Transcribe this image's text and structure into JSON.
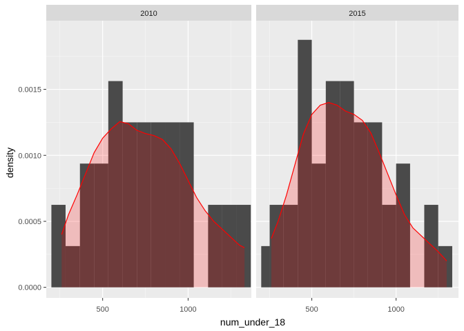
{
  "chart_data": {
    "type": "histogram-density",
    "xlabel": "num_under_18",
    "ylabel": "density",
    "xlim": [
      170,
      1370
    ],
    "ylim": [
      -8e-05,
      0.00202
    ],
    "x_ticks": [
      500,
      1000
    ],
    "y_ticks": [
      0.0,
      0.0005,
      0.001,
      0.0015
    ],
    "y_tick_labels": [
      "0.0000",
      "0.0005",
      "0.0010",
      "0.0015"
    ],
    "bin_width": 83.3,
    "colors": {
      "histogram": "#4a4a4a",
      "density_line": "#ff0000",
      "density_fill": "#ff0000",
      "panel_background": "#ebebeb",
      "strip_background": "#d9d9d9"
    },
    "panels": [
      {
        "label": "2010",
        "histogram": [
          {
            "x0": 200,
            "x1": 283,
            "y": 0.000625
          },
          {
            "x0": 283,
            "x1": 367,
            "y": 0.0003125
          },
          {
            "x0": 367,
            "x1": 450,
            "y": 0.0009375
          },
          {
            "x0": 450,
            "x1": 533,
            "y": 0.0009375
          },
          {
            "x0": 533,
            "x1": 617,
            "y": 0.0015625
          },
          {
            "x0": 617,
            "x1": 700,
            "y": 0.00125
          },
          {
            "x0": 700,
            "x1": 783,
            "y": 0.00125
          },
          {
            "x0": 783,
            "x1": 867,
            "y": 0.00125
          },
          {
            "x0": 867,
            "x1": 950,
            "y": 0.00125
          },
          {
            "x0": 950,
            "x1": 1033,
            "y": 0.00125
          },
          {
            "x0": 1033,
            "x1": 1117,
            "y": 0.0
          },
          {
            "x0": 1117,
            "x1": 1200,
            "y": 0.000625
          },
          {
            "x0": 1200,
            "x1": 1283,
            "y": 0.000625
          },
          {
            "x0": 1283,
            "x1": 1367,
            "y": 0.000625
          }
        ],
        "density": [
          {
            "x": 260,
            "y": 0.0004
          },
          {
            "x": 300,
            "y": 0.00055
          },
          {
            "x": 350,
            "y": 0.0007
          },
          {
            "x": 400,
            "y": 0.00086
          },
          {
            "x": 450,
            "y": 0.00102
          },
          {
            "x": 500,
            "y": 0.00113
          },
          {
            "x": 550,
            "y": 0.0012
          },
          {
            "x": 600,
            "y": 0.001255
          },
          {
            "x": 650,
            "y": 0.00124
          },
          {
            "x": 700,
            "y": 0.00119
          },
          {
            "x": 750,
            "y": 0.001165
          },
          {
            "x": 800,
            "y": 0.00115
          },
          {
            "x": 850,
            "y": 0.00112
          },
          {
            "x": 900,
            "y": 0.00105
          },
          {
            "x": 950,
            "y": 0.00094
          },
          {
            "x": 1000,
            "y": 0.00081
          },
          {
            "x": 1050,
            "y": 0.00068
          },
          {
            "x": 1100,
            "y": 0.00058
          },
          {
            "x": 1150,
            "y": 0.0005
          },
          {
            "x": 1200,
            "y": 0.00044
          },
          {
            "x": 1250,
            "y": 0.00038
          },
          {
            "x": 1300,
            "y": 0.00032
          },
          {
            "x": 1330,
            "y": 0.0003
          }
        ]
      },
      {
        "label": "2015",
        "histogram": [
          {
            "x0": 200,
            "x1": 250,
            "y": 0.0003125
          },
          {
            "x0": 250,
            "x1": 333,
            "y": 0.000625
          },
          {
            "x0": 333,
            "x1": 417,
            "y": 0.000625
          },
          {
            "x0": 417,
            "x1": 500,
            "y": 0.001875
          },
          {
            "x0": 500,
            "x1": 583,
            "y": 0.0009375
          },
          {
            "x0": 583,
            "x1": 667,
            "y": 0.0015625
          },
          {
            "x0": 667,
            "x1": 750,
            "y": 0.0015625
          },
          {
            "x0": 750,
            "x1": 833,
            "y": 0.00125
          },
          {
            "x0": 833,
            "x1": 917,
            "y": 0.00125
          },
          {
            "x0": 917,
            "x1": 1000,
            "y": 0.000625
          },
          {
            "x0": 1000,
            "x1": 1083,
            "y": 0.0009375
          },
          {
            "x0": 1083,
            "x1": 1167,
            "y": 0.0
          },
          {
            "x0": 1167,
            "x1": 1250,
            "y": 0.000625
          },
          {
            "x0": 1250,
            "x1": 1333,
            "y": 0.0003125
          }
        ],
        "density": [
          {
            "x": 260,
            "y": 0.00037
          },
          {
            "x": 300,
            "y": 0.0005
          },
          {
            "x": 350,
            "y": 0.0007
          },
          {
            "x": 400,
            "y": 0.00093
          },
          {
            "x": 450,
            "y": 0.00116
          },
          {
            "x": 500,
            "y": 0.00131
          },
          {
            "x": 550,
            "y": 0.00138
          },
          {
            "x": 600,
            "y": 0.0014
          },
          {
            "x": 650,
            "y": 0.00138
          },
          {
            "x": 700,
            "y": 0.001335
          },
          {
            "x": 750,
            "y": 0.00131
          },
          {
            "x": 800,
            "y": 0.001265
          },
          {
            "x": 850,
            "y": 0.00117
          },
          {
            "x": 900,
            "y": 0.00102
          },
          {
            "x": 950,
            "y": 0.00086
          },
          {
            "x": 1000,
            "y": 0.0007
          },
          {
            "x": 1050,
            "y": 0.00055
          },
          {
            "x": 1100,
            "y": 0.00045
          },
          {
            "x": 1150,
            "y": 0.00039
          },
          {
            "x": 1200,
            "y": 0.00033
          },
          {
            "x": 1250,
            "y": 0.00027
          },
          {
            "x": 1300,
            "y": 0.0002
          }
        ]
      }
    ]
  }
}
